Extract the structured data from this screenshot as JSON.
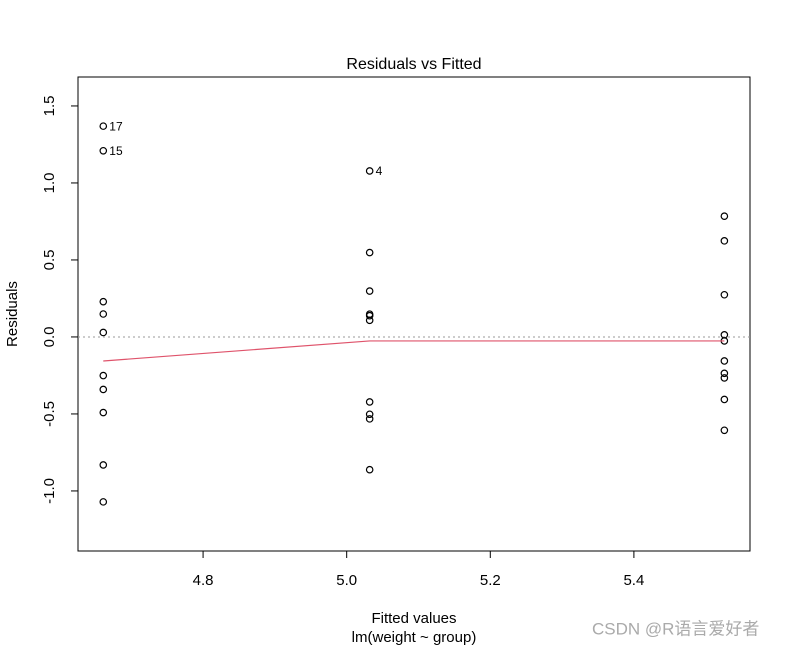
{
  "chart_data": {
    "type": "scatter",
    "title": "Residuals vs Fitted",
    "xlabel": "Fitted values",
    "subtitle": "lm(weight ~ group)",
    "ylabel": "Residuals",
    "watermark": "CSDN @R语言爱好者",
    "x": [
      5.032,
      5.032,
      5.032,
      5.032,
      5.032,
      5.032,
      5.032,
      5.032,
      5.032,
      5.032,
      4.661,
      4.661,
      4.661,
      4.661,
      4.661,
      4.661,
      4.661,
      4.661,
      4.661,
      4.661,
      5.526,
      5.526,
      5.526,
      5.526,
      5.526,
      5.526,
      5.526,
      5.526,
      5.526,
      5.526
    ],
    "values": [
      -0.862,
      0.548,
      0.148,
      1.078,
      -0.532,
      -0.422,
      0.138,
      -0.502,
      0.298,
      0.108,
      0.149,
      -0.491,
      -0.251,
      -1.071,
      1.209,
      -0.831,
      1.369,
      0.229,
      -0.341,
      0.029,
      0.784,
      -0.406,
      0.014,
      -0.026,
      -0.156,
      -0.236,
      -0.606,
      0.624,
      0.274,
      -0.266
    ],
    "point_labels": [
      null,
      null,
      null,
      "4",
      null,
      null,
      null,
      null,
      null,
      null,
      null,
      null,
      null,
      null,
      "15",
      null,
      "17",
      null,
      null,
      null,
      null,
      null,
      null,
      null,
      null,
      null,
      null,
      null,
      null,
      null
    ],
    "color": "#000000",
    "smooth": {
      "color": "#DF536B",
      "x": [
        4.661,
        5.032,
        5.526
      ],
      "values": [
        -0.156,
        -0.026,
        -0.026
      ]
    },
    "reference_line": 0,
    "xlim": [
      4.6258,
      5.5617
    ],
    "ylim": [
      -1.39,
      1.688
    ],
    "xticks": [
      4.8,
      {
        "value": 5.0,
        "label": "5.0"
      },
      5.2,
      5.4
    ],
    "yticks": [
      {
        "value": -1,
        "label": "-1.0"
      },
      -0.5,
      {
        "value": 0,
        "label": "0.0"
      },
      0.5,
      {
        "value": 1,
        "label": "1.0"
      },
      1.5
    ]
  }
}
